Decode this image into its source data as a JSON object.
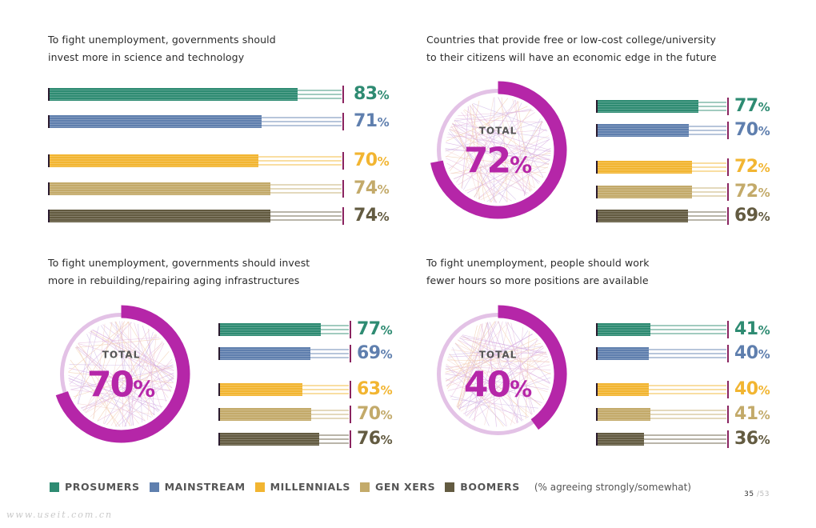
{
  "series_colors": {
    "Prosumers": "#2e8b72",
    "Mainstream": "#5f7fae",
    "Millennials": "#f2b531",
    "Gen Xers": "#c3aa6a",
    "Boomers": "#635b41"
  },
  "accent_color": "#b526a8",
  "chart_data": [
    {
      "type": "bar",
      "title": "To fight unemployment, governments should\ninvest more in science and technology",
      "categories": [
        "PROSUMERS",
        "MAINSTREAM",
        "MILLENNIALS",
        "GEN XERS",
        "BOOMERS"
      ],
      "values": [
        83,
        71,
        70,
        74,
        74
      ],
      "value_labels": [
        "83",
        "71",
        "70",
        "74",
        "74"
      ],
      "unit": "%",
      "xlim": [
        0,
        100
      ]
    },
    {
      "type": "bar",
      "title": "Countries that provide free or low-cost college/university\nto their citizens will have an economic edge in the future",
      "total_label": "TOTAL",
      "total_value": 72,
      "total_text": "72",
      "categories": [
        "PROSUMERS",
        "MAINSTREAM",
        "MILLENNIALS",
        "GEN XERS",
        "BOOMERS"
      ],
      "values": [
        77,
        70,
        72,
        72,
        69
      ],
      "value_labels": [
        "77",
        "70",
        "72",
        "72",
        "69"
      ],
      "unit": "%",
      "xlim": [
        0,
        100
      ]
    },
    {
      "type": "bar",
      "title": "To fight unemployment, governments should invest\nmore in rebuilding/repairing aging infrastructures",
      "total_label": "TOTAL",
      "total_value": 70,
      "total_text": "70",
      "categories": [
        "PROSUMERS",
        "MAINSTREAM",
        "MILLENNIALS",
        "GEN XERS",
        "BOOMERS"
      ],
      "values": [
        77,
        69,
        63,
        70,
        76
      ],
      "value_labels": [
        "77",
        "69",
        "63",
        "70",
        "76"
      ],
      "unit": "%",
      "xlim": [
        0,
        100
      ]
    },
    {
      "type": "bar",
      "title": "To fight unemployment, people should work\nfewer hours so more positions are available",
      "total_label": "TOTAL",
      "total_value": 40,
      "total_text": "40",
      "categories": [
        "PROSUMERS",
        "MAINSTREAM",
        "MILLENNIALS",
        "GEN XERS",
        "BOOMERS"
      ],
      "values": [
        41,
        40,
        40,
        41,
        36
      ],
      "value_labels": [
        "41",
        "40",
        "40",
        "41",
        "36"
      ],
      "unit": "%",
      "xlim": [
        0,
        100
      ]
    }
  ],
  "legend": {
    "items": [
      "PROSUMERS",
      "MAINSTREAM",
      "MILLENNIALS",
      "GEN XERS",
      "BOOMERS"
    ],
    "note": "(% agreeing strongly/somewhat)"
  },
  "page": {
    "current": "35",
    "separator": "/",
    "total": "53"
  },
  "watermark": "www.useit.com.cn"
}
